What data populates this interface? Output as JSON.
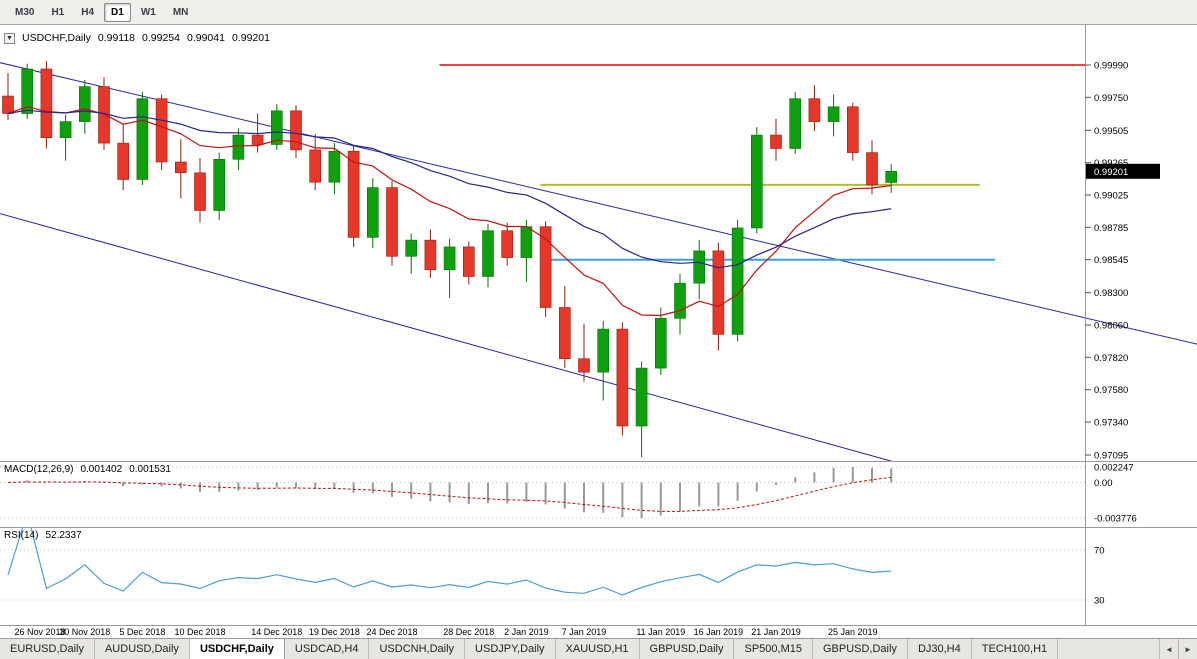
{
  "toolbar": {
    "timeframes": [
      {
        "label": "M30",
        "active": false
      },
      {
        "label": "H1",
        "active": false
      },
      {
        "label": "H4",
        "active": false
      },
      {
        "label": "D1",
        "active": true
      },
      {
        "label": "W1",
        "active": false
      },
      {
        "label": "MN",
        "active": false
      }
    ]
  },
  "chart_title": {
    "symbol": "USDCHF,Daily",
    "open": "0.99118",
    "high": "0.99254",
    "low": "0.99041",
    "close": "0.99201"
  },
  "chart_data": [
    {
      "type": "candlestick",
      "title": "USDCHF,Daily",
      "current_price": "0.99201",
      "y_axis_labels": [
        "0.99990",
        "0.99750",
        "0.99505",
        "0.99265",
        "0.99025",
        "0.98785",
        "0.98545",
        "0.98300",
        "0.98060",
        "0.97820",
        "0.97580",
        "0.97340",
        "0.97095"
      ],
      "x_axis_labels": [
        {
          "index": 0,
          "label": "26 Nov 2018"
        },
        {
          "index": 4,
          "label": "30 Nov 2018"
        },
        {
          "index": 7,
          "label": "5 Dec 2018"
        },
        {
          "index": 10,
          "label": "10 Dec 2018"
        },
        {
          "index": 14,
          "label": "14 Dec 2018"
        },
        {
          "index": 17,
          "label": "19 Dec 2018"
        },
        {
          "index": 20,
          "label": "24 Dec 2018"
        },
        {
          "index": 24,
          "label": "28 Dec 2018"
        },
        {
          "index": 27,
          "label": "2 Jan 2019"
        },
        {
          "index": 30,
          "label": "7 Jan 2019"
        },
        {
          "index": 34,
          "label": "11 Jan 2019"
        },
        {
          "index": 37,
          "label": "16 Jan 2019"
        },
        {
          "index": 40,
          "label": "21 Jan 2019"
        },
        {
          "index": 44,
          "label": "25 Jan 2019"
        }
      ],
      "candles": [
        [
          0.9976,
          0.9993,
          0.9958,
          0.9963
        ],
        [
          0.9963,
          1.0,
          0.9959,
          0.9996
        ],
        [
          0.9996,
          1.0002,
          0.9937,
          0.9945
        ],
        [
          0.9945,
          0.9962,
          0.9928,
          0.9957
        ],
        [
          0.9957,
          0.9988,
          0.9948,
          0.9983
        ],
        [
          0.9983,
          0.999,
          0.9936,
          0.9941
        ],
        [
          0.9941,
          0.9955,
          0.9906,
          0.9914
        ],
        [
          0.9914,
          0.9979,
          0.991,
          0.9974
        ],
        [
          0.9974,
          0.9977,
          0.9921,
          0.9927
        ],
        [
          0.9927,
          0.9944,
          0.99,
          0.9919
        ],
        [
          0.9919,
          0.993,
          0.9882,
          0.9891
        ],
        [
          0.9891,
          0.9934,
          0.9884,
          0.9929
        ],
        [
          0.9929,
          0.9952,
          0.9921,
          0.9947
        ],
        [
          0.9947,
          0.9963,
          0.9934,
          0.994
        ],
        [
          0.994,
          0.997,
          0.9936,
          0.9965
        ],
        [
          0.9965,
          0.9969,
          0.993,
          0.9936
        ],
        [
          0.9936,
          0.9948,
          0.9906,
          0.9912
        ],
        [
          0.9912,
          0.9941,
          0.9903,
          0.9935
        ],
        [
          0.9935,
          0.9939,
          0.9864,
          0.9871
        ],
        [
          0.9871,
          0.9915,
          0.9863,
          0.9908
        ],
        [
          0.9908,
          0.9913,
          0.985,
          0.9857
        ],
        [
          0.9857,
          0.9874,
          0.9844,
          0.9869
        ],
        [
          0.9869,
          0.9877,
          0.9841,
          0.9847
        ],
        [
          0.9847,
          0.987,
          0.9826,
          0.9864
        ],
        [
          0.9864,
          0.9868,
          0.9836,
          0.9842
        ],
        [
          0.9842,
          0.9881,
          0.9834,
          0.9876
        ],
        [
          0.9876,
          0.9882,
          0.985,
          0.9856
        ],
        [
          0.9856,
          0.9884,
          0.9838,
          0.9879
        ],
        [
          0.9879,
          0.9883,
          0.9812,
          0.9819
        ],
        [
          0.9819,
          0.9835,
          0.9774,
          0.9781
        ],
        [
          0.9781,
          0.9807,
          0.9764,
          0.9771
        ],
        [
          0.9771,
          0.9809,
          0.975,
          0.9803
        ],
        [
          0.9803,
          0.9808,
          0.9724,
          0.9731
        ],
        [
          0.9731,
          0.9779,
          0.9708,
          0.9774
        ],
        [
          0.9774,
          0.9819,
          0.9769,
          0.9811
        ],
        [
          0.9811,
          0.9844,
          0.9799,
          0.9837
        ],
        [
          0.9837,
          0.9869,
          0.9825,
          0.9861
        ],
        [
          0.9861,
          0.9867,
          0.9787,
          0.9799
        ],
        [
          0.9799,
          0.9884,
          0.9794,
          0.9878
        ],
        [
          0.9878,
          0.9953,
          0.9874,
          0.9947
        ],
        [
          0.9947,
          0.9959,
          0.9928,
          0.9937
        ],
        [
          0.9937,
          0.9979,
          0.9933,
          0.9974
        ],
        [
          0.9974,
          0.9984,
          0.995,
          0.9957
        ],
        [
          0.9957,
          0.9977,
          0.9946,
          0.9968
        ],
        [
          0.9968,
          0.9971,
          0.9928,
          0.9934
        ],
        [
          0.9934,
          0.9943,
          0.9903,
          0.991
        ],
        [
          0.99118,
          0.99254,
          0.99041,
          0.99201
        ]
      ],
      "overlays": {
        "moving_averages": [
          {
            "type": "ema",
            "period": 12,
            "color": "#c41111"
          },
          {
            "type": "ema",
            "period": 26,
            "color": "#26268c"
          }
        ],
        "horizontal_lines": [
          {
            "price": 0.9999,
            "color": "#ff4040",
            "width": 2,
            "x_start": 0.405,
            "x_end": 1.0
          },
          {
            "price": 0.991,
            "color": "#b8bb22",
            "width": 2,
            "x_start": 0.498,
            "x_end": 0.903
          },
          {
            "price": 0.98545,
            "color": "#3aa0dc",
            "width": 2,
            "x_start": 0.502,
            "x_end": 0.917
          }
        ],
        "trend_lines": [
          {
            "i1": -0.5,
            "p1": 1.0001,
            "i2": 62,
            "p2": 0.97915,
            "color": "#2424a8",
            "width": 1
          },
          {
            "i1": -0.5,
            "p1": 0.9889,
            "i2": 46.5,
            "p2": 0.9703,
            "color": "#2424a8",
            "width": 1
          }
        ]
      },
      "colors": {
        "up": "#0fa00f",
        "up_stroke": "#077007",
        "down": "#e5382a",
        "down_stroke": "#951b10"
      }
    },
    {
      "type": "macd",
      "label": "MACD(12,26,9)",
      "values": [
        "0.001402",
        "0.001531"
      ],
      "params": {
        "fast": 12,
        "slow": 26,
        "signal": 9
      },
      "scale_labels": [
        "0.002247",
        "0.00",
        "-0.003776"
      ],
      "colors": {
        "histogram": "#999999",
        "signal": "#c41111"
      }
    },
    {
      "type": "rsi",
      "label": "RSI(14)",
      "value": "52.2337",
      "period": 14,
      "levels": [
        70,
        30
      ],
      "scale_labels": [
        "70",
        "30"
      ],
      "colors": {
        "line": "#4a9fd4"
      }
    }
  ],
  "tabs": {
    "items": [
      {
        "label": "EURUSD,Daily",
        "active": false
      },
      {
        "label": "AUDUSD,Daily",
        "active": false
      },
      {
        "label": "USDCHF,Daily",
        "active": true
      },
      {
        "label": "USDCAD,H4",
        "active": false
      },
      {
        "label": "USDCNH,Daily",
        "active": false
      },
      {
        "label": "USDJPY,Daily",
        "active": false
      },
      {
        "label": "XAUUSD,H1",
        "active": false
      },
      {
        "label": "GBPUSD,Daily",
        "active": false
      },
      {
        "label": "SP500,M15",
        "active": false
      },
      {
        "label": "GBPUSD,Daily",
        "active": false
      },
      {
        "label": "DJ30,H4",
        "active": false
      },
      {
        "label": "TECH100,H1",
        "active": false
      }
    ],
    "scroll_left": "◄",
    "scroll_right": "►"
  }
}
